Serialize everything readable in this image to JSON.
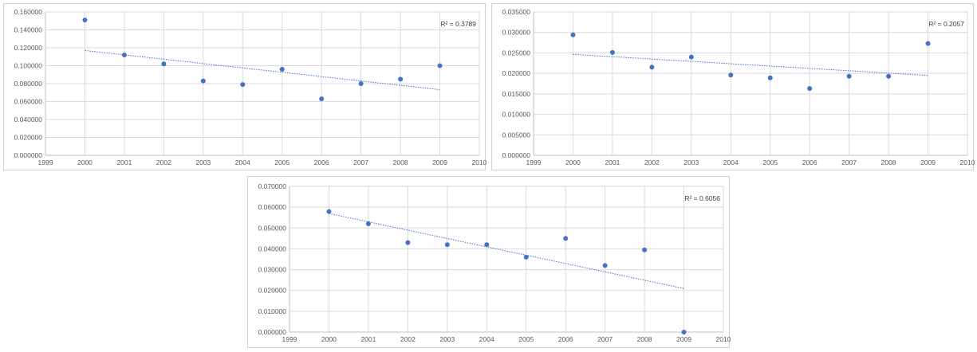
{
  "chart_data": [
    {
      "type": "scatter",
      "x": [
        2000,
        2001,
        2002,
        2003,
        2004,
        2005,
        2006,
        2007,
        2008,
        2009
      ],
      "y": [
        0.151,
        0.112,
        0.102,
        0.083,
        0.079,
        0.096,
        0.063,
        0.08,
        0.085,
        0.1
      ],
      "trendline": {
        "type": "linear",
        "r2_label": "R² = 0.3789"
      },
      "xlim": [
        1999,
        2010
      ],
      "ylim": [
        0,
        0.16
      ],
      "x_ticks": [
        "1999",
        "2000",
        "2001",
        "2002",
        "2003",
        "2004",
        "2005",
        "2006",
        "2007",
        "2008",
        "2009",
        "2010"
      ],
      "y_ticks": [
        "0.000000",
        "0.020000",
        "0.040000",
        "0.060000",
        "0.080000",
        "0.100000",
        "0.120000",
        "0.140000",
        "0.160000"
      ],
      "grid": true,
      "color": "#4472c4"
    },
    {
      "type": "scatter",
      "x": [
        2000,
        2001,
        2002,
        2003,
        2004,
        2005,
        2006,
        2007,
        2008,
        2009
      ],
      "y": [
        0.0294,
        0.0251,
        0.0215,
        0.024,
        0.0196,
        0.0189,
        0.0163,
        0.0193,
        0.0193,
        0.0273
      ],
      "trendline": {
        "type": "linear",
        "r2_label": "R² = 0.2057"
      },
      "xlim": [
        1999,
        2010
      ],
      "ylim": [
        0,
        0.035
      ],
      "x_ticks": [
        "1999",
        "2000",
        "2001",
        "2002",
        "2003",
        "2004",
        "2005",
        "2006",
        "2007",
        "2008",
        "2009",
        "2010"
      ],
      "y_ticks": [
        "0.000000",
        "0.005000",
        "0.010000",
        "0.015000",
        "0.020000",
        "0.025000",
        "0.030000",
        "0.035000"
      ],
      "grid": true,
      "color": "#4472c4"
    },
    {
      "type": "scatter",
      "x": [
        2000,
        2001,
        2002,
        2003,
        2004,
        2005,
        2006,
        2007,
        2008,
        2009
      ],
      "y": [
        0.0579,
        0.052,
        0.043,
        0.042,
        0.042,
        0.036,
        0.045,
        0.032,
        0.0395,
        0.0
      ],
      "trendline": {
        "type": "linear",
        "r2_label": "R² = 0.6056"
      },
      "xlim": [
        1999,
        2010
      ],
      "ylim": [
        0,
        0.07
      ],
      "x_ticks": [
        "1999",
        "2000",
        "2001",
        "2002",
        "2003",
        "2004",
        "2005",
        "2006",
        "2007",
        "2008",
        "2009",
        "2010"
      ],
      "y_ticks": [
        "0.000000",
        "0.010000",
        "0.020000",
        "0.030000",
        "0.040000",
        "0.050000",
        "0.060000",
        "0.070000"
      ],
      "grid": true,
      "color": "#4472c4"
    }
  ]
}
